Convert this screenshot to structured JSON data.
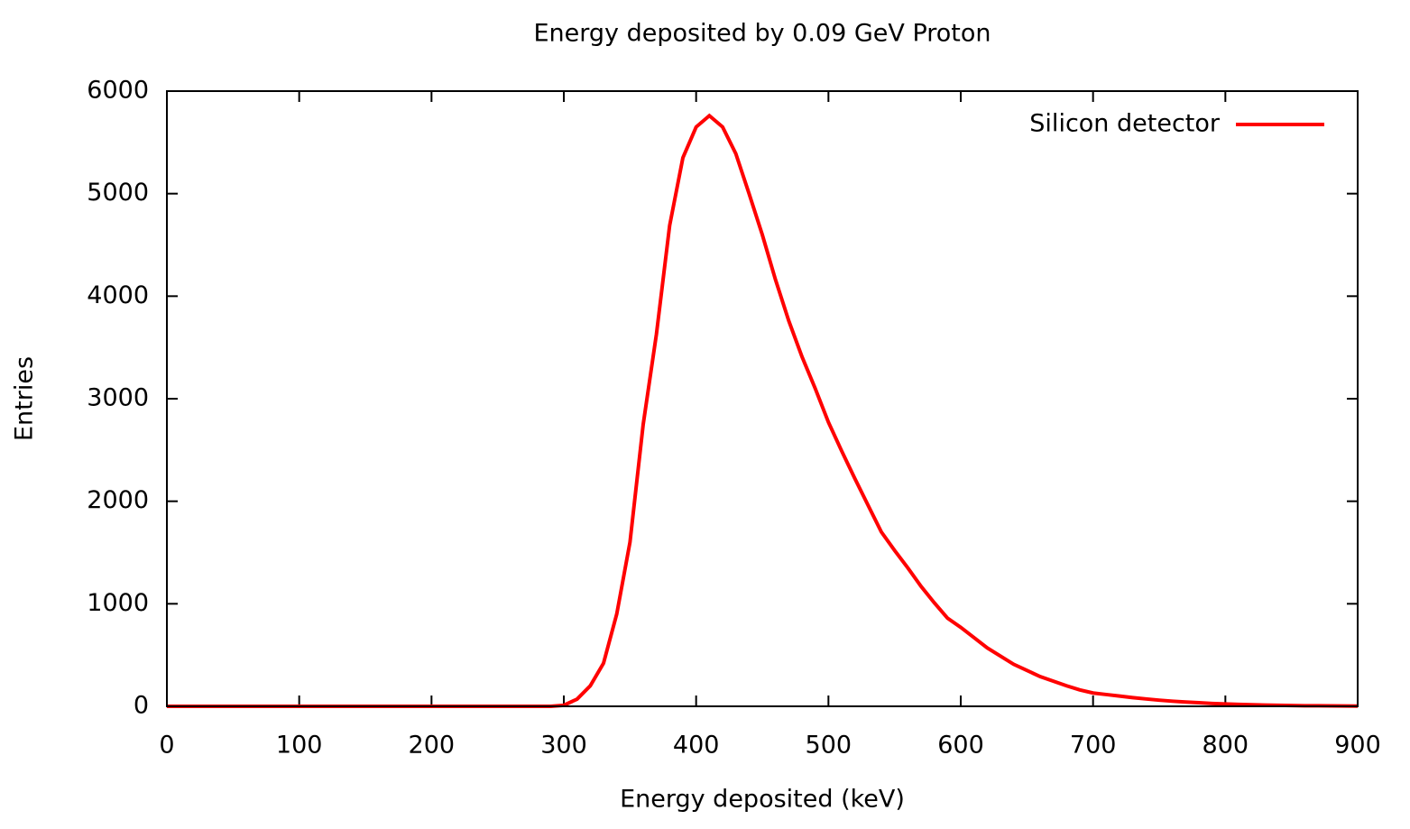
{
  "chart_data": {
    "type": "line",
    "title": "Energy deposited by 0.09 GeV Proton",
    "x_label": "Energy deposited (keV)",
    "y_label": "Entries",
    "x": [
      0,
      10,
      20,
      30,
      40,
      50,
      60,
      70,
      80,
      90,
      100,
      110,
      120,
      130,
      140,
      150,
      160,
      170,
      180,
      190,
      200,
      210,
      220,
      230,
      240,
      250,
      260,
      270,
      280,
      290,
      300,
      310,
      320,
      330,
      340,
      350,
      360,
      370,
      380,
      390,
      400,
      410,
      420,
      430,
      440,
      450,
      460,
      470,
      480,
      490,
      500,
      510,
      520,
      530,
      540,
      550,
      560,
      570,
      580,
      590,
      600,
      610,
      620,
      630,
      640,
      650,
      660,
      670,
      680,
      690,
      700,
      710,
      720,
      730,
      740,
      750,
      760,
      770,
      780,
      790,
      800,
      810,
      820,
      830,
      840,
      850,
      860,
      870,
      880,
      890,
      900
    ],
    "series": [
      {
        "name": "Silicon detector",
        "color": "#ff0000",
        "values": [
          0,
          0,
          0,
          0,
          0,
          0,
          0,
          0,
          0,
          0,
          0,
          0,
          0,
          0,
          0,
          0,
          0,
          0,
          0,
          0,
          0,
          0,
          0,
          0,
          0,
          0,
          0,
          0,
          0,
          0,
          10,
          70,
          200,
          420,
          900,
          1600,
          2750,
          3630,
          4690,
          5350,
          5650,
          5760,
          5650,
          5390,
          5000,
          4600,
          4160,
          3760,
          3410,
          3100,
          2770,
          2490,
          2220,
          1960,
          1700,
          1520,
          1350,
          1170,
          1010,
          860,
          770,
          670,
          570,
          490,
          410,
          350,
          290,
          245,
          200,
          160,
          130,
          115,
          100,
          85,
          72,
          60,
          50,
          42,
          35,
          28,
          23,
          19,
          15,
          12,
          10,
          8,
          6,
          5,
          4,
          3,
          2
        ]
      }
    ],
    "xlim": [
      0,
      900
    ],
    "xticks": [
      0,
      100,
      200,
      300,
      400,
      500,
      600,
      700,
      800,
      900
    ],
    "ylim": [
      0,
      6000
    ],
    "yticks": [
      0,
      1000,
      2000,
      3000,
      4000,
      5000,
      6000
    ],
    "legend": "top-right",
    "grid": false
  }
}
